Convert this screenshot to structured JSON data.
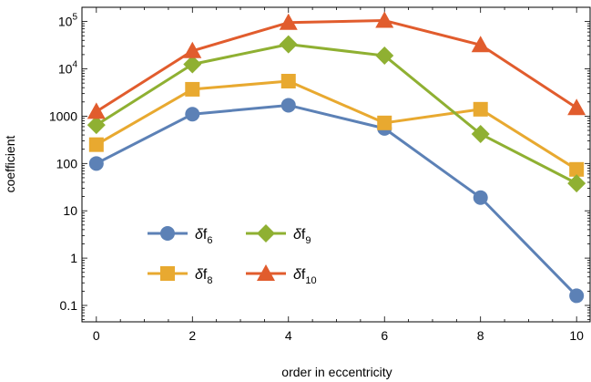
{
  "chart_data": {
    "type": "line",
    "xlabel": "order in eccentricity",
    "ylabel": "coefficient",
    "x": [
      0,
      2,
      4,
      6,
      8,
      10
    ],
    "xlim": [
      -0.3,
      10.3
    ],
    "ylim": [
      0.045,
      200000
    ],
    "yscale": "log",
    "xticks": [
      "0",
      "2",
      "4",
      "6",
      "8",
      "10"
    ],
    "yticks": [
      {
        "value": 0.1,
        "label": "0.1"
      },
      {
        "value": 1,
        "label": "1"
      },
      {
        "value": 10,
        "label": "10"
      },
      {
        "value": 100,
        "label": "100"
      },
      {
        "value": 1000,
        "label": "1000"
      },
      {
        "value": 10000,
        "label": "10",
        "exp": "4"
      },
      {
        "value": 100000,
        "label": "10",
        "exp": "5"
      }
    ],
    "legend_placement": "lower-left",
    "series": [
      {
        "name": "δf6",
        "base": "δf",
        "sub": "6",
        "marker": "circle",
        "color": "#5c81b6",
        "values": [
          100,
          1100,
          1700,
          550,
          19,
          0.16
        ]
      },
      {
        "name": "δf8",
        "base": "δf",
        "sub": "8",
        "marker": "square",
        "color": "#e8a930",
        "values": [
          250,
          3700,
          5500,
          720,
          1400,
          75
        ]
      },
      {
        "name": "δf9",
        "base": "δf",
        "sub": "9",
        "marker": "diamond",
        "color": "#8fb032",
        "values": [
          650,
          12500,
          33000,
          19000,
          420,
          38
        ]
      },
      {
        "name": "δf10",
        "base": "δf",
        "sub": "10",
        "marker": "triangle",
        "color": "#e15c2d",
        "values": [
          1250,
          24000,
          95000,
          105000,
          32000,
          1500
        ]
      }
    ]
  }
}
